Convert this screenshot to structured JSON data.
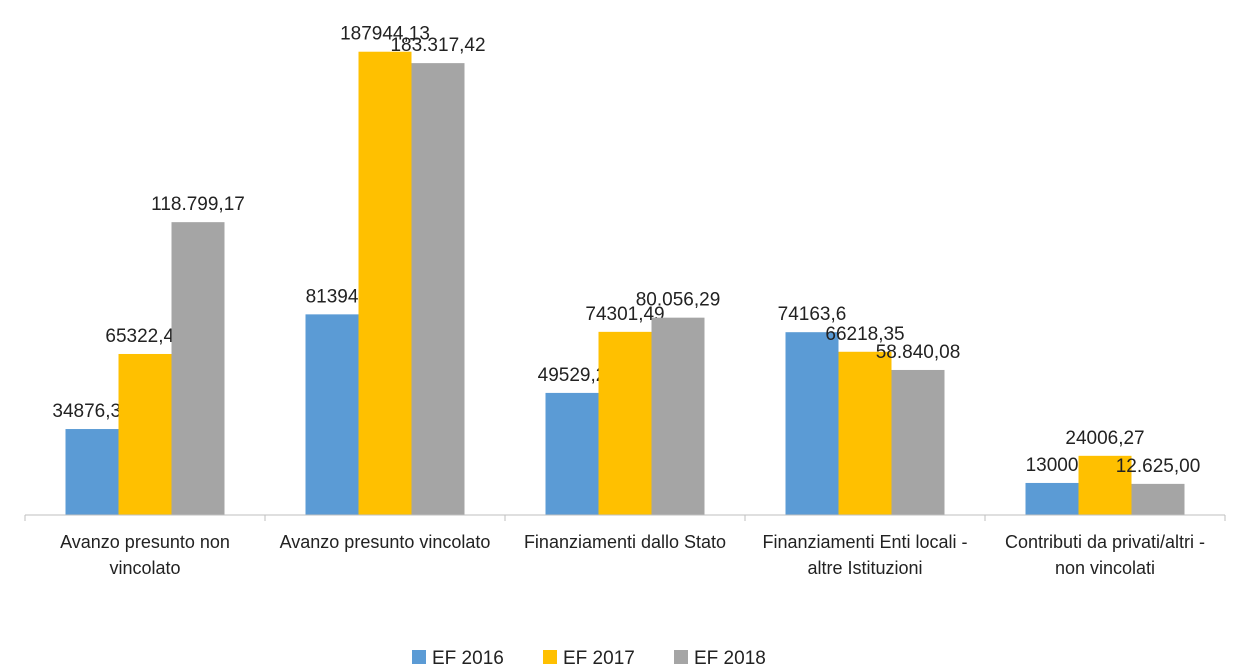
{
  "chart_data": {
    "type": "bar",
    "categories": [
      "Avanzo presunto non vincolato",
      "Avanzo presunto vincolato",
      "Finanziamenti dallo Stato",
      "Finanziamenti Enti locali - altre Istituzioni",
      "Contributi da privati/altri - non vincolati"
    ],
    "series": [
      {
        "name": "EF 2016",
        "color": "#5b9bd5",
        "values": [
          34876.31,
          81394,
          49529.2,
          74163.6,
          13000
        ],
        "value_labels": [
          "34876,31",
          "81394",
          "49529,2",
          "74163,6",
          "13000"
        ]
      },
      {
        "name": "EF 2017",
        "color": "#ffc000",
        "values": [
          65322.43,
          187944.13,
          74301.49,
          66218.35,
          24006.27
        ],
        "value_labels": [
          "65322,43",
          "187944,13",
          "74301,49",
          "66218,35",
          "24006,27"
        ]
      },
      {
        "name": "EF 2018",
        "color": "#a5a5a5",
        "values": [
          118799.17,
          183317.42,
          80056.29,
          58840.08,
          12625.0
        ],
        "value_labels": [
          "118.799,17",
          "183.317,42",
          "80.056,29",
          "58.840,08",
          "12.625,00"
        ]
      }
    ],
    "ylim": [
      0,
      200000
    ],
    "legend": "bottom"
  }
}
